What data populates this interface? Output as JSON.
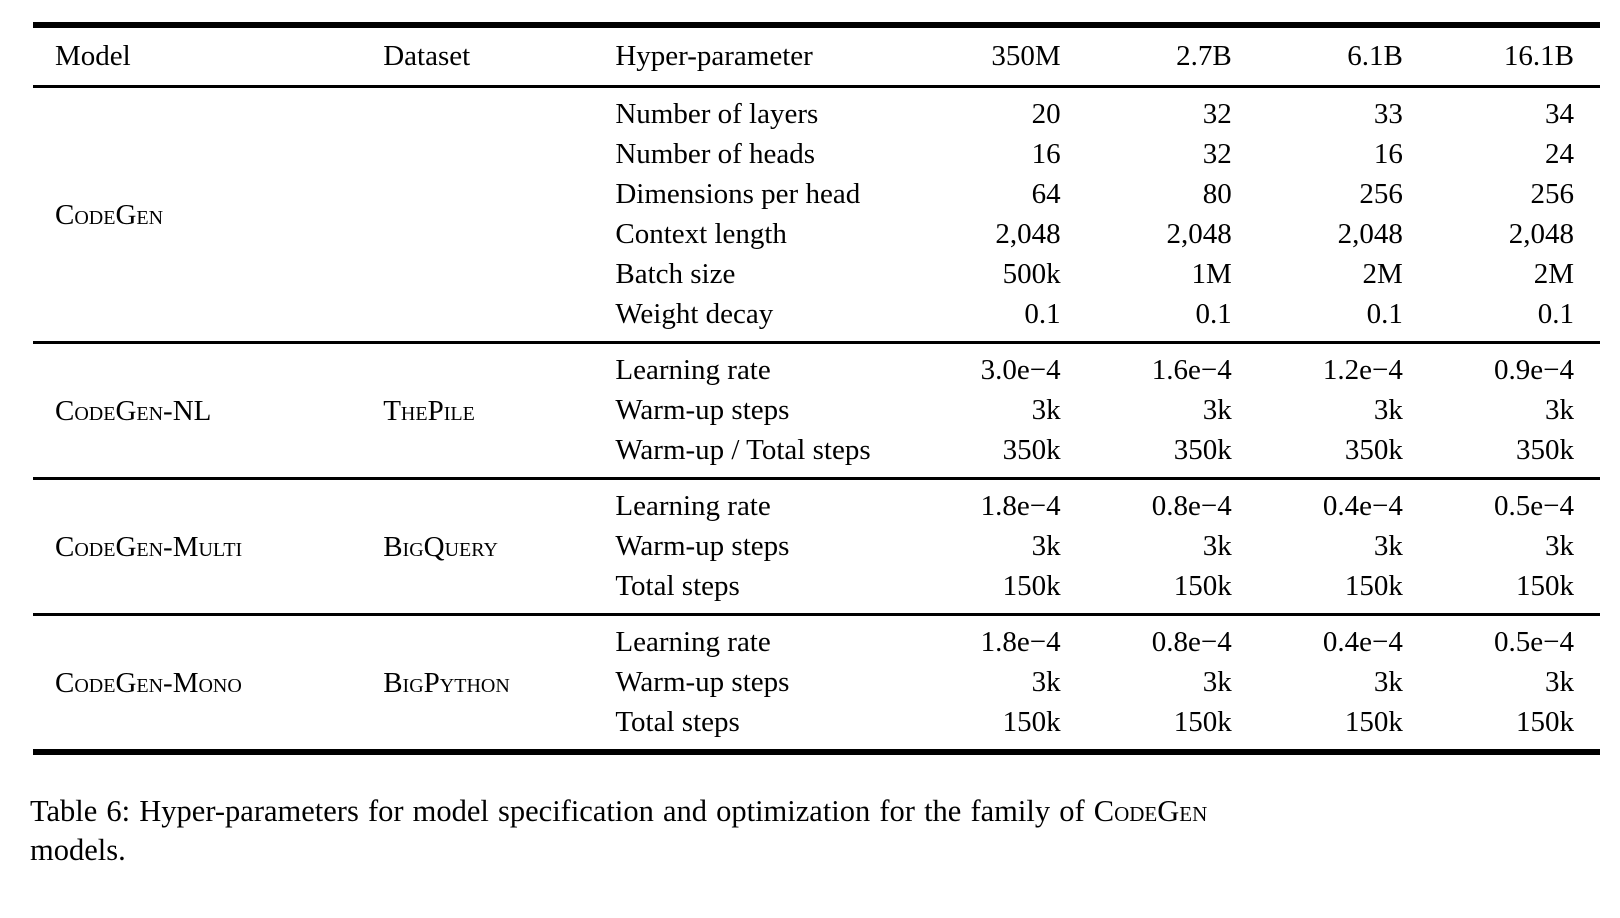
{
  "table": {
    "columns": [
      "Model",
      "Dataset",
      "Hyper-parameter",
      "350M",
      "2.7B",
      "6.1B",
      "16.1B"
    ],
    "groups": [
      {
        "model": "CodeGen",
        "dataset": "",
        "rows": [
          {
            "label": "Number of layers",
            "values": [
              "20",
              "32",
              "33",
              "34"
            ]
          },
          {
            "label": "Number of heads",
            "values": [
              "16",
              "32",
              "16",
              "24"
            ]
          },
          {
            "label": "Dimensions per head",
            "values": [
              "64",
              "80",
              "256",
              "256"
            ]
          },
          {
            "label": "Context length",
            "values": [
              "2,048",
              "2,048",
              "2,048",
              "2,048"
            ]
          },
          {
            "label": "Batch size",
            "values": [
              "500k",
              "1M",
              "2M",
              "2M"
            ]
          },
          {
            "label": "Weight decay",
            "values": [
              "0.1",
              "0.1",
              "0.1",
              "0.1"
            ]
          }
        ]
      },
      {
        "model": "CodeGen-NL",
        "dataset": "ThePile",
        "rows": [
          {
            "label": "Learning rate",
            "values": [
              "3.0e−4",
              "1.6e−4",
              "1.2e−4",
              "0.9e−4"
            ]
          },
          {
            "label": "Warm-up steps",
            "values": [
              "3k",
              "3k",
              "3k",
              "3k"
            ]
          },
          {
            "label": "Warm-up / Total steps",
            "values": [
              "350k",
              "350k",
              "350k",
              "350k"
            ]
          }
        ]
      },
      {
        "model": "CodeGen-Multi",
        "dataset": "BigQuery",
        "rows": [
          {
            "label": "Learning rate",
            "values": [
              "1.8e−4",
              "0.8e−4",
              "0.4e−4",
              "0.5e−4"
            ]
          },
          {
            "label": "Warm-up steps",
            "values": [
              "3k",
              "3k",
              "3k",
              "3k"
            ]
          },
          {
            "label": "Total steps",
            "values": [
              "150k",
              "150k",
              "150k",
              "150k"
            ]
          }
        ]
      },
      {
        "model": "CodeGen-Mono",
        "dataset": "BigPython",
        "rows": [
          {
            "label": "Learning rate",
            "values": [
              "1.8e−4",
              "0.8e−4",
              "0.4e−4",
              "0.5e−4"
            ]
          },
          {
            "label": "Warm-up steps",
            "values": [
              "3k",
              "3k",
              "3k",
              "3k"
            ]
          },
          {
            "label": "Total steps",
            "values": [
              "150k",
              "150k",
              "150k",
              "150k"
            ]
          }
        ]
      }
    ]
  },
  "caption": {
    "prefix": "Table 6: Hyper-parameters for model specification and optimization for the family of ",
    "brand": "CodeGen",
    "suffix": "models."
  }
}
